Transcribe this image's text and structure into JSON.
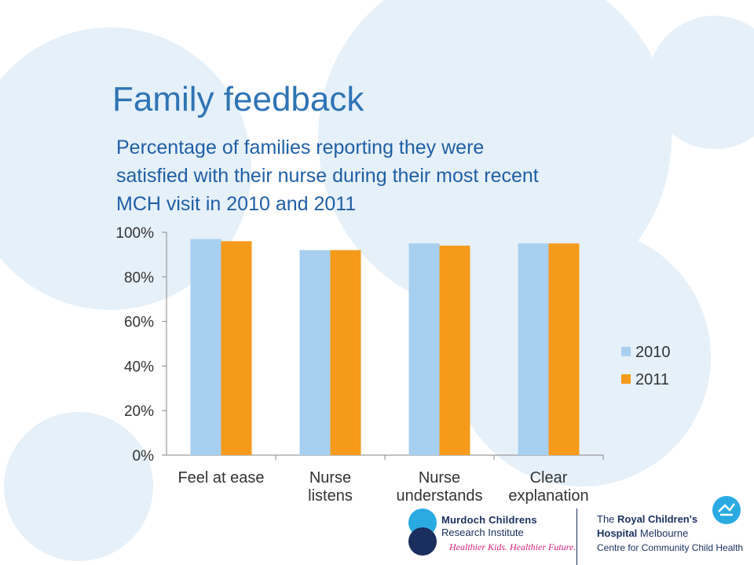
{
  "slide": {
    "title": "Family feedback",
    "subtitle_line1": "Percentage of families reporting they were",
    "subtitle_line2": "satisfied with their nurse during their most recent",
    "subtitle_line3": "MCH visit in 2010 and 2011"
  },
  "colors": {
    "title": "#2e74b5",
    "series_2010": "#a7cff0",
    "series_2011": "#f59a1b",
    "circle": "#e3eef7",
    "navy": "#1a2f5e",
    "cyan": "#29abe2",
    "magenta": "#d81b7a"
  },
  "chart_data": {
    "type": "bar",
    "categories": [
      [
        "Feel at ease"
      ],
      [
        "Nurse",
        "listens"
      ],
      [
        "Nurse",
        "understands"
      ],
      [
        "Clear",
        "explanation"
      ]
    ],
    "series": [
      {
        "name": "2010",
        "values": [
          97,
          92,
          95,
          95
        ]
      },
      {
        "name": "2011",
        "values": [
          96,
          92,
          94,
          95
        ]
      }
    ],
    "ylim": [
      0,
      100
    ],
    "yticks": [
      "0%",
      "20%",
      "40%",
      "60%",
      "80%",
      "100%"
    ],
    "legend_position": "right",
    "grid": false
  },
  "logos": {
    "mcri_line1": "Murdoch Childrens",
    "mcri_line2": "Research Institute",
    "mcri_tagline": "Healthier Kids. Healthier Future.",
    "rch_line1_a": "The ",
    "rch_line1_b": "Royal Children's",
    "rch_line2_a": "Hospital",
    "rch_line2_b": " Melbourne",
    "rch_line3": "Centre for Community Child Health"
  }
}
